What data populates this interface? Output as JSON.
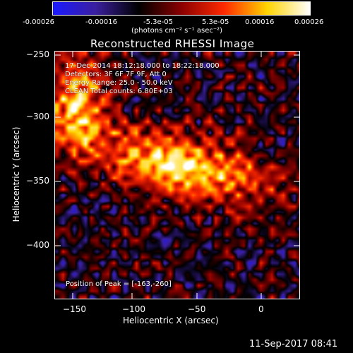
{
  "colorbar": {
    "ticks": [
      "-0.00026",
      "-0.00016",
      "-5.3e-05",
      "5.3e-05",
      "0.00016",
      "0.00026"
    ],
    "unit_label": "(photons cm⁻² s⁻¹ asec⁻²)",
    "range": [
      -0.00026,
      0.00026
    ],
    "colors": [
      "#1a1aff",
      "#3b1f9e",
      "#000000",
      "#8a0000",
      "#ff2a00",
      "#ffd400",
      "#ffffff"
    ]
  },
  "plot": {
    "title": "Reconstructed RHESSI Image",
    "x_axis": {
      "label": "Heliocentric X (arcsec)",
      "range": [
        -163,
        28
      ],
      "ticks": [
        "−150",
        "−100",
        "−50",
        "0"
      ]
    },
    "y_axis": {
      "label": "Heliocentric Y (arcsec)",
      "range": [
        -440,
        -246
      ],
      "ticks": [
        "−250",
        "−300",
        "−350",
        "−400"
      ]
    },
    "annotations": {
      "time_range": "17-Dec-2014 18:12:18.000 to 18:22:18.000",
      "detectors": "Detectors: 3F 6F 7F 9F, Att 0",
      "energy_range": "Energy Range: 25.0 - 50.0 keV",
      "method_counts": "CLEAN  Total counts: 6.80E+03",
      "peak": "Position of Peak = [-163,-260]"
    }
  },
  "footer": {
    "date": "11-Sep-2017 08:41"
  }
}
